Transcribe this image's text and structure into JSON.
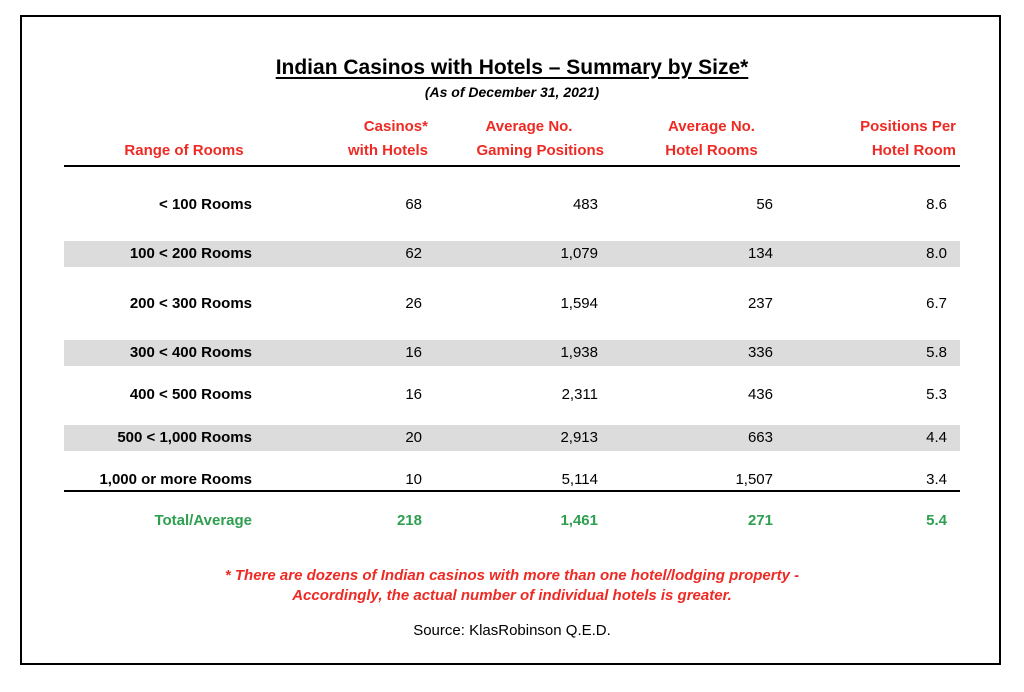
{
  "title": "Indian Casinos with Hotels – Summary by Size*",
  "subtitle": "(As of December 31, 2021)",
  "headers": {
    "range": "Range of Rooms",
    "casinos_line1": "Casinos*",
    "casinos_line2": "with Hotels",
    "gaming_line1": "Average No.",
    "gaming_line2": "Gaming Positions",
    "rooms_line1": "Average No.",
    "rooms_line2": "Hotel Rooms",
    "ppr_line1": "Positions Per",
    "ppr_line2": "Hotel Room"
  },
  "rows": [
    {
      "range": "< 100 Rooms",
      "casinos": "68",
      "gaming": "483",
      "rooms": "56",
      "ppr": "8.6",
      "shaded": false
    },
    {
      "range": "100 < 200 Rooms",
      "casinos": "62",
      "gaming": "1,079",
      "rooms": "134",
      "ppr": "8.0",
      "shaded": true
    },
    {
      "range": "200 < 300 Rooms",
      "casinos": "26",
      "gaming": "1,594",
      "rooms": "237",
      "ppr": "6.7",
      "shaded": false
    },
    {
      "range": "300 < 400 Rooms",
      "casinos": "16",
      "gaming": "1,938",
      "rooms": "336",
      "ppr": "5.8",
      "shaded": true
    },
    {
      "range": "400 < 500 Rooms",
      "casinos": "16",
      "gaming": "2,311",
      "rooms": "436",
      "ppr": "5.3",
      "shaded": false
    },
    {
      "range": "500 < 1,000 Rooms",
      "casinos": "20",
      "gaming": "2,913",
      "rooms": "663",
      "ppr": "4.4",
      "shaded": true
    },
    {
      "range": "1,000 or more Rooms",
      "casinos": "10",
      "gaming": "5,114",
      "rooms": "1,507",
      "ppr": "3.4",
      "shaded": false
    }
  ],
  "total": {
    "range": "Total/Average",
    "casinos": "218",
    "gaming": "1,461",
    "rooms": "271",
    "ppr": "5.4"
  },
  "note_line1": "* There are dozens of Indian casinos with more than one hotel/lodging property -",
  "note_line2": "Accordingly, the actual number of individual hotels is greater.",
  "source": "Source: KlasRobinson Q.E.D.",
  "colors": {
    "header": "#ee2a24",
    "total": "#2e9e4f",
    "shade": "#dcdcdc"
  }
}
